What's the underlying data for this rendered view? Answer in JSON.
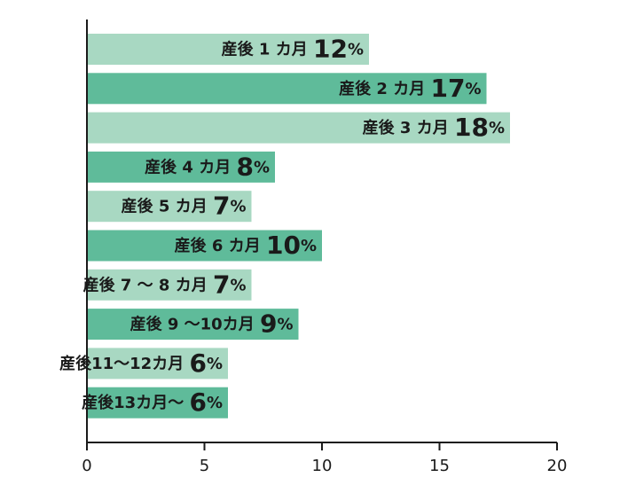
{
  "chart_data": {
    "type": "bar",
    "orientation": "horizontal",
    "categories": [
      {
        "label": "産後 1 カ月",
        "value": 12,
        "value_label": "12",
        "unit": "%"
      },
      {
        "label": "産後 2 カ月",
        "value": 17,
        "value_label": "17",
        "unit": "%"
      },
      {
        "label": "産後 3 カ月",
        "value": 18,
        "value_label": "18",
        "unit": "%"
      },
      {
        "label": "産後 4 カ月",
        "value": 8,
        "value_label": "8",
        "unit": "%"
      },
      {
        "label": "産後 5 カ月",
        "value": 7,
        "value_label": "7",
        "unit": "%"
      },
      {
        "label": "産後 6 カ月",
        "value": 10,
        "value_label": "10",
        "unit": "%"
      },
      {
        "label": "産後 7 〜 8 カ月",
        "value": 7,
        "value_label": "7",
        "unit": "%"
      },
      {
        "label": "産後 9 〜10カ月",
        "value": 9,
        "value_label": "9",
        "unit": "%"
      },
      {
        "label": "産後11〜12カ月",
        "value": 6,
        "value_label": "6",
        "unit": "%"
      },
      {
        "label": "産後13カ月〜",
        "value": 6,
        "value_label": "6",
        "unit": "%"
      }
    ],
    "x_ticks": [
      "0",
      "5",
      "10",
      "15",
      "20"
    ],
    "xlim": [
      0,
      20
    ],
    "grid": false,
    "colors": {
      "bar_dark": "#5fbb9a",
      "bar_light": "#a8d8c2",
      "axis": "#1a1a1a",
      "text": "#1a1a1a"
    }
  }
}
